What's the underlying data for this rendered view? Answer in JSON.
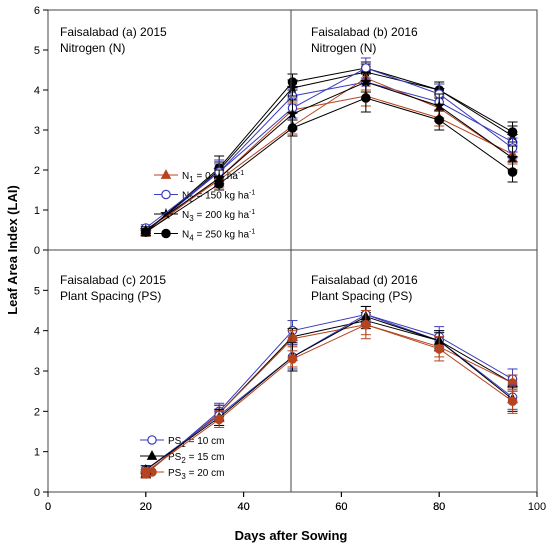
{
  "figure": {
    "xlabel": "Days after Sowing",
    "ylabel": "Leaf Area Index (LAI)"
  },
  "chart_data": [
    {
      "type": "line",
      "panel": "a",
      "title": "Faisalabad (a) 2015",
      "subtitle": "Nitrogen (N)",
      "x": [
        20,
        35,
        50,
        65,
        80,
        95
      ],
      "xlim": [
        0,
        100
      ],
      "ylim": [
        0,
        6
      ],
      "x_ticks": [],
      "y_ticks": [
        "0",
        "1",
        "2",
        "3",
        "4",
        "5",
        "6"
      ],
      "legend_position": "center",
      "series": [
        {
          "label_main": "N",
          "label_sub": "1",
          "label_rest": "= 0 kg ha",
          "label_sup": "-1",
          "marker": "triangle",
          "fill": "filled",
          "color": "#b5441f",
          "values": [
            0.43,
            1.8,
            3.5,
            3.85,
            3.3,
            2.4
          ],
          "errors": [
            0.08,
            0.15,
            0.2,
            0.25,
            0.2,
            0.25
          ]
        },
        {
          "label_main": "N",
          "label_sub": "2",
          "label_rest": "= 150 kg ha",
          "label_sup": "-1",
          "marker": "circle",
          "fill": "open",
          "color": "#3b3bbf",
          "values": [
            0.45,
            1.95,
            3.85,
            4.2,
            3.7,
            2.7
          ],
          "errors": [
            0.08,
            0.2,
            0.2,
            0.25,
            0.2,
            0.25
          ]
        },
        {
          "label_main": "N",
          "label_sub": "3",
          "label_rest": "= 200 kg ha",
          "label_sup": "-1",
          "marker": "star",
          "fill": "filled",
          "color": "#000000",
          "values": [
            0.45,
            2.0,
            4.05,
            4.45,
            4.0,
            2.85
          ],
          "errors": [
            0.08,
            0.2,
            0.2,
            0.2,
            0.2,
            0.25
          ]
        },
        {
          "label_main": "N",
          "label_sub": "4",
          "label_rest": "= 250 kg ha",
          "label_sup": "-1",
          "marker": "circle",
          "fill": "filled",
          "color": "#000000",
          "values": [
            0.45,
            2.05,
            4.2,
            4.55,
            4.0,
            2.95
          ],
          "errors": [
            0.08,
            0.3,
            0.2,
            0.15,
            0.15,
            0.25
          ]
        }
      ]
    },
    {
      "type": "line",
      "panel": "b",
      "title": "Faisalabad (b) 2016",
      "subtitle": "Nitrogen (N)",
      "x": [
        20,
        35,
        50,
        65,
        80,
        95
      ],
      "xlim": [
        0,
        100
      ],
      "ylim": [
        0,
        6
      ],
      "x_ticks": [],
      "y_ticks": [],
      "series": [
        {
          "marker": "triangle",
          "fill": "filled",
          "color": "#b5441f",
          "values": [
            0.5,
            1.75,
            3.1,
            4.3,
            3.55,
            2.3
          ],
          "errors": [
            0.08,
            0.2,
            0.2,
            0.3,
            0.3,
            0.3
          ]
        },
        {
          "marker": "circle",
          "fill": "open",
          "color": "#3b3bbf",
          "values": [
            0.55,
            1.95,
            3.55,
            4.55,
            3.9,
            2.55
          ],
          "errors": [
            0.08,
            0.3,
            0.25,
            0.25,
            0.25,
            0.25
          ]
        },
        {
          "marker": "star",
          "fill": "filled",
          "color": "#000000",
          "values": [
            0.5,
            1.8,
            3.4,
            4.2,
            3.6,
            2.3
          ],
          "errors": [
            0.08,
            0.2,
            0.35,
            0.25,
            0.3,
            0.3
          ]
        },
        {
          "marker": "circle",
          "fill": "filled",
          "color": "#000000",
          "values": [
            0.45,
            1.65,
            3.05,
            3.8,
            3.25,
            1.95
          ],
          "errors": [
            0.08,
            0.15,
            0.2,
            0.35,
            0.25,
            0.25
          ]
        }
      ]
    },
    {
      "type": "line",
      "panel": "c",
      "title": "Faisalabad (c) 2015",
      "subtitle": "Plant Spacing (PS)",
      "x": [
        20,
        35,
        50,
        65,
        80,
        95
      ],
      "xlim": [
        0,
        100
      ],
      "ylim": [
        0,
        6
      ],
      "x_ticks": [
        "0",
        "20",
        "40",
        "60",
        "80"
      ],
      "y_ticks": [
        "0",
        "1",
        "2",
        "3",
        "4",
        "5"
      ],
      "legend_position": "lower-center",
      "series": [
        {
          "label_main": "PS",
          "label_sub": "1",
          "label_rest": "= 10 cm",
          "label_sup": "",
          "marker": "circle",
          "fill": "open",
          "color": "#3b3bbf",
          "values": [
            0.45,
            2.0,
            4.0,
            4.4,
            3.85,
            2.8
          ],
          "errors": [
            0.1,
            0.2,
            0.25,
            0.2,
            0.25,
            0.25
          ]
        },
        {
          "label_main": "PS",
          "label_sub": "2",
          "label_rest": " =  15 cm",
          "label_sup": "",
          "marker": "triangle",
          "fill": "filled",
          "color": "#000000",
          "values": [
            0.45,
            1.95,
            3.85,
            4.25,
            3.75,
            2.7
          ],
          "errors": [
            0.1,
            0.2,
            0.2,
            0.2,
            0.2,
            0.2
          ]
        },
        {
          "label_main": "PS",
          "label_sub": "3",
          "label_rest": " = 20 cm",
          "label_sup": "",
          "marker": "circle",
          "fill": "filled",
          "color": "#b5441f",
          "values": [
            0.45,
            1.95,
            3.8,
            4.15,
            3.6,
            2.7
          ],
          "errors": [
            0.1,
            0.2,
            0.2,
            0.25,
            0.25,
            0.2
          ]
        }
      ]
    },
    {
      "type": "line",
      "panel": "d",
      "title": "Faisalabad (d) 2016",
      "subtitle": "Plant Spacing (PS)",
      "x": [
        20,
        35,
        50,
        65,
        80,
        95
      ],
      "xlim": [
        0,
        100
      ],
      "ylim": [
        0,
        6
      ],
      "x_ticks": [
        "0",
        "20",
        "40",
        "60",
        "80",
        "100"
      ],
      "y_ticks": [],
      "series": [
        {
          "marker": "circle",
          "fill": "open",
          "color": "#3b3bbf",
          "values": [
            0.55,
            1.9,
            3.35,
            4.4,
            3.75,
            2.35
          ],
          "errors": [
            0.1,
            0.25,
            0.3,
            0.2,
            0.25,
            0.3
          ]
        },
        {
          "marker": "triangle",
          "fill": "filled",
          "color": "#000000",
          "values": [
            0.55,
            1.85,
            3.35,
            4.35,
            3.75,
            2.3
          ],
          "errors": [
            0.1,
            0.2,
            0.35,
            0.25,
            0.25,
            0.3
          ]
        },
        {
          "marker": "circle",
          "fill": "filled",
          "color": "#b5441f",
          "values": [
            0.5,
            1.8,
            3.3,
            4.15,
            3.55,
            2.25
          ],
          "errors": [
            0.1,
            0.2,
            0.2,
            0.35,
            0.3,
            0.3
          ]
        }
      ]
    }
  ]
}
